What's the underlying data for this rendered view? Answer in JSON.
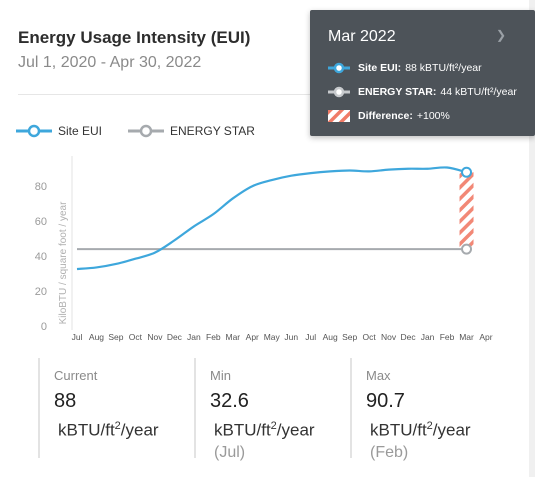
{
  "header": {
    "title": "Energy Usage Intensity (EUI)",
    "subtitle": "Jul 1, 2020 - Apr 30, 2022"
  },
  "legend": {
    "site": "Site EUI",
    "energystar": "ENERGY STAR"
  },
  "colors": {
    "site": "#3ea7dc",
    "energystar": "#a6aaae",
    "difference": "#f07b67",
    "tooltip_bg": "#4d5359"
  },
  "tooltip": {
    "title": "Mar 2022",
    "site_label": "Site EUI:",
    "site_value": "88 kBTU/ft²/year",
    "es_label": "ENERGY STAR:",
    "es_value": "44 kBTU/ft²/year",
    "diff_label": "Difference:",
    "diff_value": "+100%"
  },
  "stats": {
    "current_label": "Current",
    "current_value": "88",
    "min_label": "Min",
    "min_value": "32.6",
    "min_note": "(Jul)",
    "max_label": "Max",
    "max_value": "90.7",
    "max_note": "(Feb)",
    "unit_pre": "kBTU/ft",
    "unit_exp": "2",
    "unit_post": "/year"
  },
  "chart_data": {
    "type": "line",
    "ylabel": "KiloBTU / square foot / year",
    "ylim": [
      0,
      95
    ],
    "yticks": [
      0,
      20,
      40,
      60,
      80
    ],
    "categories": [
      "Jul",
      "Aug",
      "Sep",
      "Oct",
      "Nov",
      "Dec",
      "Jan",
      "Feb",
      "Mar",
      "Apr",
      "May",
      "Jun",
      "Jul",
      "Aug",
      "Sep",
      "Oct",
      "Nov",
      "Dec",
      "Jan",
      "Feb",
      "Mar",
      "Apr"
    ],
    "series": [
      {
        "name": "Site EUI",
        "values": [
          32.6,
          33.5,
          35.5,
          38.5,
          42,
          49,
          57,
          64,
          73,
          80,
          83.5,
          86,
          87.5,
          88.5,
          89,
          88.5,
          89.5,
          90,
          90,
          90.7,
          88,
          null
        ]
      },
      {
        "name": "ENERGY STAR",
        "values": [
          44,
          44,
          44,
          44,
          44,
          44,
          44,
          44,
          44,
          44,
          44,
          44,
          44,
          44,
          44,
          44,
          44,
          44,
          44,
          44,
          44,
          null
        ]
      }
    ],
    "highlight_category_index": 20
  }
}
